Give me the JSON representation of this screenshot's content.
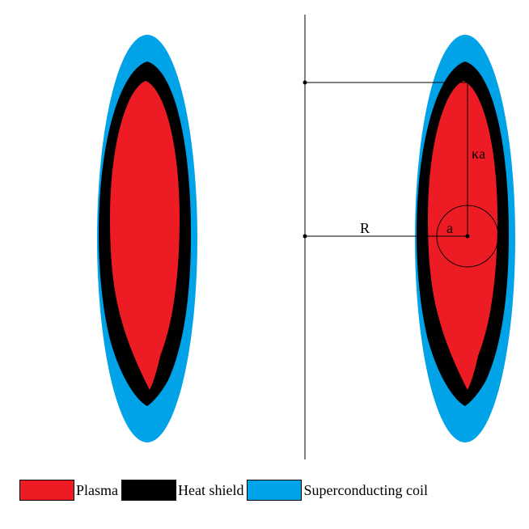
{
  "colors": {
    "plasma": "#ed1c24",
    "heat_shield": "#000000",
    "coil": "#00a2e8",
    "line": "#000000"
  },
  "labels": {
    "major_radius": "R",
    "minor_radius": "a",
    "elongation": "κa"
  },
  "legend": [
    {
      "label": "Plasma",
      "color_key": "plasma"
    },
    {
      "label": "Heat shield",
      "color_key": "heat_shield"
    },
    {
      "label": "Superconducting coil",
      "color_key": "coil"
    }
  ]
}
